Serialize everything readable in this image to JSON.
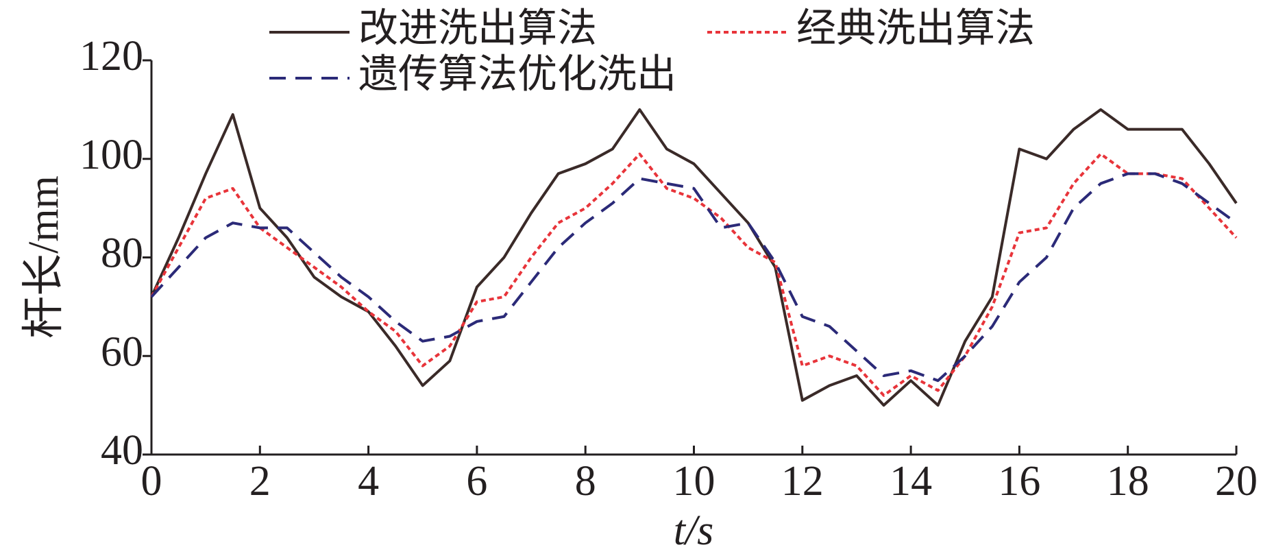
{
  "chart_data": {
    "type": "line",
    "xlabel": "t/s",
    "ylabel": "杆长/mm",
    "xlim": [
      0,
      20
    ],
    "xticks": [
      0,
      2,
      4,
      6,
      8,
      10,
      12,
      14,
      16,
      18,
      20
    ],
    "ylim": [
      40,
      120
    ],
    "yticks": [
      40,
      60,
      80,
      100,
      120
    ],
    "grid": false,
    "legend": "top",
    "x": [
      0,
      0.5,
      1,
      1.5,
      2,
      2.5,
      3,
      3.5,
      4,
      4.5,
      5,
      5.5,
      6,
      6.5,
      7,
      7.5,
      8,
      8.5,
      9,
      9.5,
      10,
      10.5,
      11,
      11.5,
      12,
      12.5,
      13,
      13.5,
      14,
      14.5,
      15,
      15.5,
      16,
      16.5,
      17,
      17.5,
      18,
      18.5,
      19,
      19.5,
      20
    ],
    "series": [
      {
        "name": "改进洗出算法",
        "color": "#3a2a28",
        "dash": "none",
        "values": [
          72,
          84,
          97,
          109,
          90,
          84,
          76,
          72,
          69,
          62,
          54,
          59,
          74,
          80,
          89,
          97,
          99,
          102,
          110,
          102,
          99,
          93,
          87,
          78,
          51,
          54,
          56,
          50,
          55,
          50,
          63,
          72,
          102,
          100,
          106,
          110,
          106,
          106,
          106,
          99,
          91
        ]
      },
      {
        "name": "经典洗出算法",
        "color": "#e8343a",
        "dash": "7 5",
        "values": [
          72,
          82,
          92,
          94,
          86,
          82,
          78,
          74,
          69,
          65,
          58,
          62,
          71,
          72,
          80,
          87,
          90,
          95,
          101,
          94,
          92,
          88,
          82,
          79,
          58,
          60,
          58,
          52,
          56,
          53,
          60,
          70,
          85,
          86,
          95,
          101,
          97,
          97,
          96,
          90,
          84
        ]
      },
      {
        "name": "遗传算法优化洗出",
        "color": "#2b2a78",
        "dash": "24 14",
        "values": [
          72,
          78,
          84,
          87,
          86,
          86,
          81,
          76,
          72,
          67,
          63,
          64,
          67,
          68,
          75,
          82,
          87,
          91,
          96,
          95,
          94,
          86,
          87,
          79,
          68,
          66,
          61,
          56,
          57,
          55,
          60,
          66,
          75,
          80,
          90,
          95,
          97,
          97,
          95,
          91,
          87
        ]
      }
    ]
  }
}
